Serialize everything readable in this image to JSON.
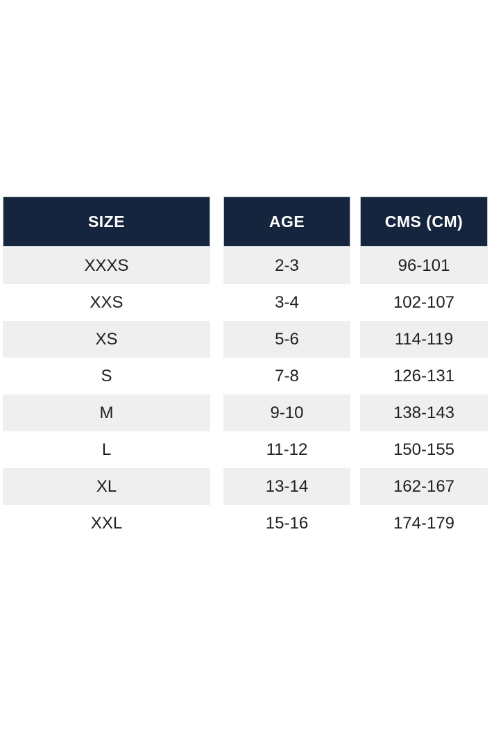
{
  "chart_data": {
    "type": "table",
    "columns": [
      "SIZE",
      "AGE",
      "CMS (CM)"
    ],
    "rows": [
      [
        "XXXS",
        "2-3",
        "96-101"
      ],
      [
        "XXS",
        "3-4",
        "102-107"
      ],
      [
        "XS",
        "5-6",
        "114-119"
      ],
      [
        "S",
        "7-8",
        "126-131"
      ],
      [
        "M",
        "9-10",
        "138-143"
      ],
      [
        "L",
        "11-12",
        "150-155"
      ],
      [
        "XL",
        "13-14",
        "162-167"
      ],
      [
        "XXL",
        "15-16",
        "174-179"
      ]
    ],
    "layout_hints": {
      "header_style": "solid navy band per column, white bold text",
      "row_striping": "odd data rows light gray, even data rows white",
      "column_gaps": "white vertical gutters between the three columns"
    }
  },
  "colors": {
    "page_bg": "#FFFFFF",
    "header_bg": "#16253E",
    "header_text": "#FFFFFF",
    "row_alt_bg": "#F0EFEF",
    "row_bg": "#FFFFFF",
    "body_text": "#1F1F1F"
  }
}
